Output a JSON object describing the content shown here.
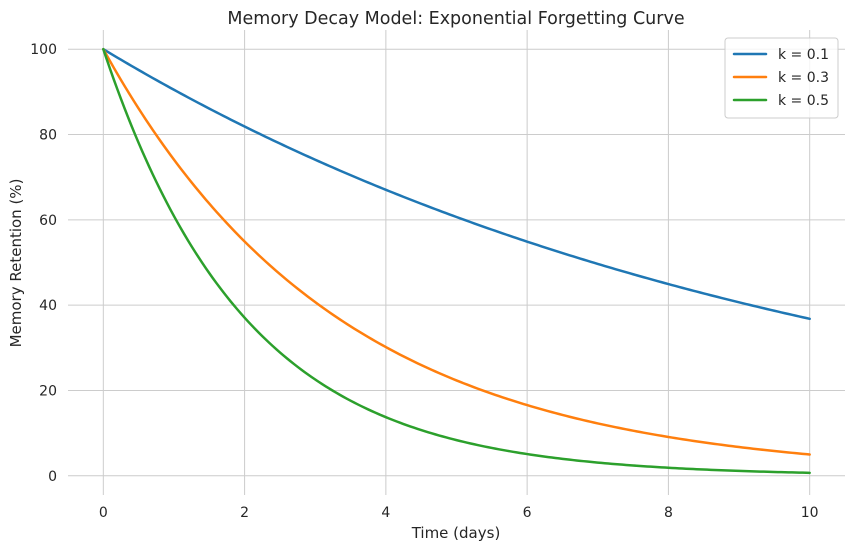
{
  "chart_data": {
    "type": "line",
    "title": "Memory Decay Model: Exponential Forgetting Curve",
    "xlabel": "Time (days)",
    "ylabel": "Memory Retention (%)",
    "xlim": [
      -0.5,
      10.5
    ],
    "ylim": [
      -4.5,
      104.5
    ],
    "xticks": [
      0,
      2,
      4,
      6,
      8,
      10
    ],
    "yticks": [
      0,
      20,
      40,
      60,
      80,
      100
    ],
    "grid": true,
    "legend_position": "top-right",
    "x": [
      0,
      0.5,
      1,
      1.5,
      2,
      2.5,
      3,
      3.5,
      4,
      4.5,
      5,
      5.5,
      6,
      6.5,
      7,
      7.5,
      8,
      8.5,
      9,
      9.5,
      10
    ],
    "series": [
      {
        "name": "k = 0.1",
        "color": "#1f77b4",
        "values": [
          100,
          95.1,
          90.5,
          86.1,
          81.9,
          77.9,
          74.1,
          70.5,
          67.0,
          63.8,
          60.7,
          57.7,
          54.9,
          52.2,
          49.7,
          47.2,
          44.9,
          42.7,
          40.7,
          38.7,
          36.8
        ]
      },
      {
        "name": "k = 0.3",
        "color": "#ff7f0e",
        "values": [
          100,
          86.1,
          74.1,
          63.8,
          54.9,
          47.2,
          40.7,
          35.0,
          30.1,
          25.9,
          22.3,
          19.2,
          16.5,
          14.2,
          12.2,
          10.5,
          9.1,
          7.8,
          6.7,
          5.8,
          5.0
        ]
      },
      {
        "name": "k = 0.5",
        "color": "#2ca02c",
        "values": [
          100,
          77.9,
          60.7,
          47.2,
          36.8,
          28.7,
          22.3,
          17.4,
          13.5,
          10.5,
          8.2,
          6.4,
          5.0,
          3.9,
          3.0,
          2.4,
          1.8,
          1.4,
          1.1,
          0.9,
          0.7
        ]
      }
    ]
  }
}
